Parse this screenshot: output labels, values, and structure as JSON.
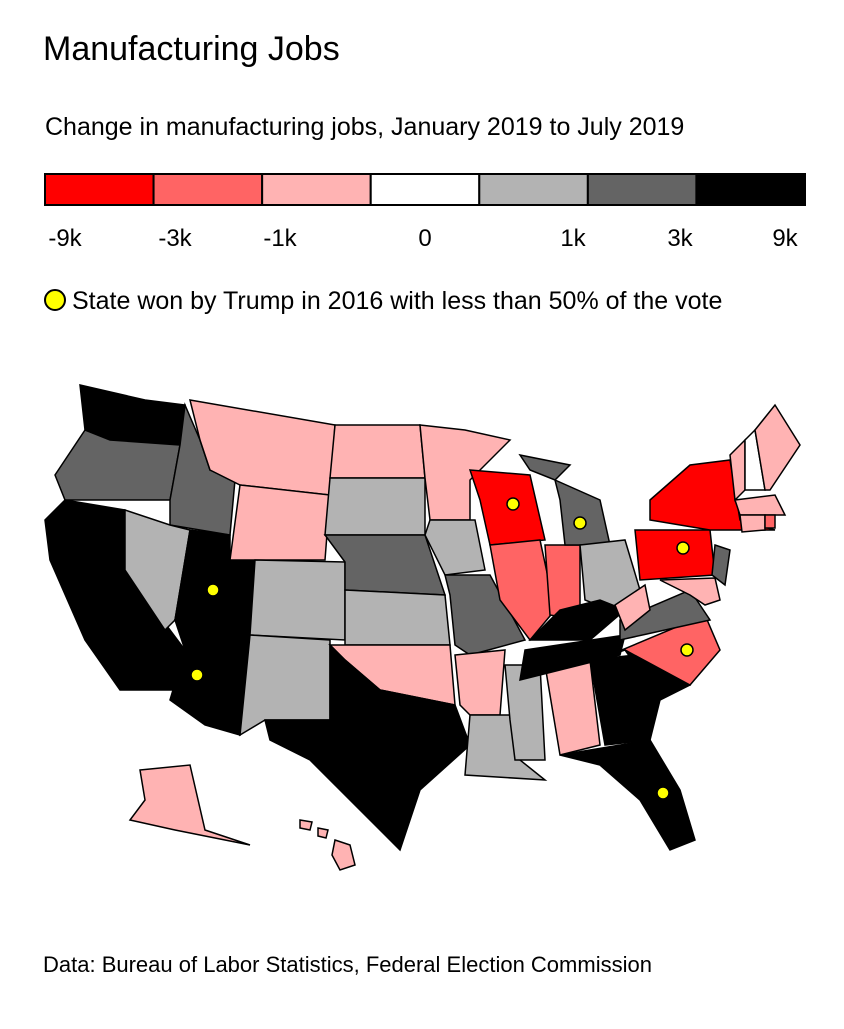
{
  "header": {
    "title": "Manufacturing Jobs",
    "subtitle": "Change in manufacturing jobs, January 2019 to July 2019"
  },
  "legend": {
    "colors": [
      "#ff0000",
      "#ff6464",
      "#ffb3b3",
      "#ffffff",
      "#b3b3b3",
      "#646464",
      "#000000"
    ],
    "labels": [
      "-9k",
      "-3k",
      "-1k",
      "0",
      "1k",
      "3k",
      "9k"
    ]
  },
  "marker_legend": {
    "color": "#ffff00",
    "label": "State won by Trump in 2016 with less than 50% of the vote"
  },
  "source": "Data: Bureau of Labor Statistics, Federal Election Commission"
}
